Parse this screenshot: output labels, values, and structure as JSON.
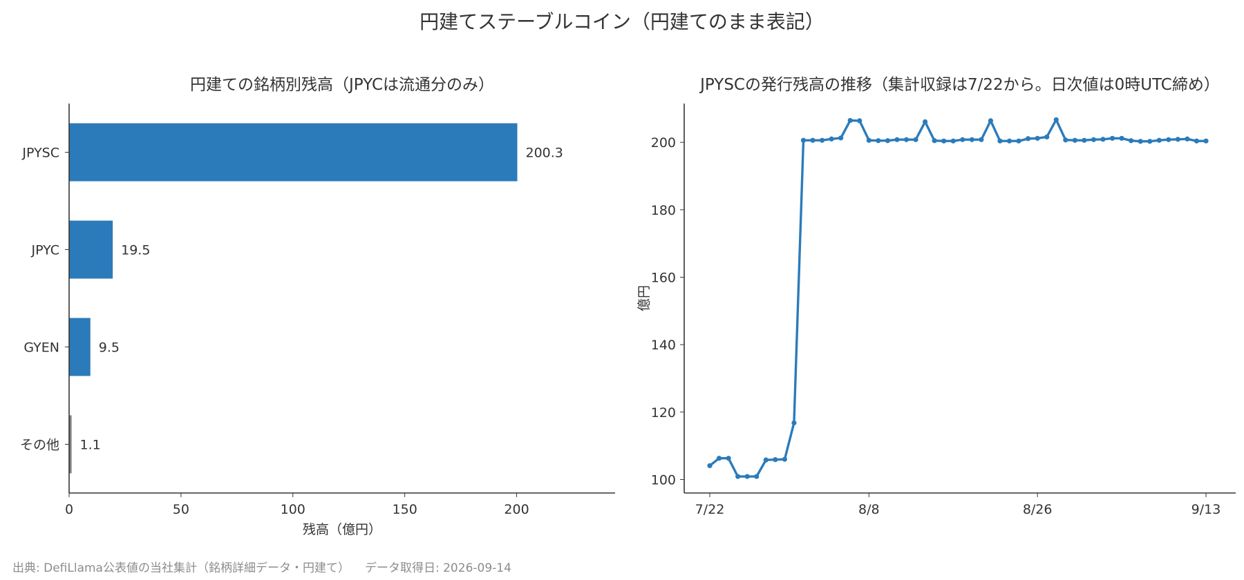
{
  "title": "円建てステーブルコイン（円建てのまま表記）",
  "footer": {
    "source": "出典: DefiLlama公表値の当社集計（銘柄詳細データ・円建て）",
    "retrieved": "データ取得日: 2026-09-14"
  },
  "colors": {
    "primary": "#2b7bba",
    "other": "#7f7f7f",
    "text": "#333333",
    "muted": "#8c8c8c"
  },
  "chart_data": [
    {
      "type": "bar",
      "orientation": "horizontal",
      "title": "円建ての銘柄別残高（JPYCは流通分のみ）",
      "xlabel": "残高（億円）",
      "ylabel": "",
      "categories": [
        "JPYSC",
        "JPYC",
        "GYEN",
        "その他"
      ],
      "values": [
        200.3,
        19.5,
        9.5,
        1.1
      ],
      "value_labels": [
        "200.3",
        "19.5",
        "9.5",
        "1.1"
      ],
      "bar_colors": [
        "#2b7bba",
        "#2b7bba",
        "#2b7bba",
        "#7f7f7f"
      ],
      "xlim": [
        0,
        244
      ],
      "xticks": [
        0,
        50,
        100,
        150,
        200
      ],
      "grid": false,
      "legend": "none"
    },
    {
      "type": "line",
      "title": "JPYSCの発行残高の推移（集計収録は7/22から。日次値は0時UTC締め）",
      "xlabel": "",
      "ylabel": "億円",
      "x_start": "7/22",
      "x_end": "9/13",
      "xticks": [
        "7/22",
        "8/8",
        "8/26",
        "9/13"
      ],
      "xtick_positions": [
        0,
        17,
        35,
        53
      ],
      "yticks": [
        100,
        120,
        140,
        160,
        180,
        200
      ],
      "ylim": [
        96,
        211.5
      ],
      "grid": false,
      "legend": "none",
      "series": [
        {
          "values": [
            104.1,
            106.3,
            106.3,
            100.9,
            100.9,
            100.9,
            105.8,
            105.9,
            106.0,
            116.8,
            200.6,
            200.6,
            200.6,
            201.0,
            201.3,
            206.5,
            206.4,
            200.6,
            200.5,
            200.5,
            200.8,
            200.8,
            200.8,
            206.1,
            200.5,
            200.4,
            200.4,
            200.8,
            200.8,
            200.8,
            206.4,
            200.4,
            200.4,
            200.4,
            201.1,
            201.2,
            201.6,
            206.7,
            200.7,
            200.6,
            200.6,
            200.8,
            200.9,
            201.2,
            201.2,
            200.5,
            200.3,
            200.3,
            200.6,
            200.8,
            200.9,
            201.0,
            200.4,
            200.4
          ]
        }
      ]
    }
  ]
}
